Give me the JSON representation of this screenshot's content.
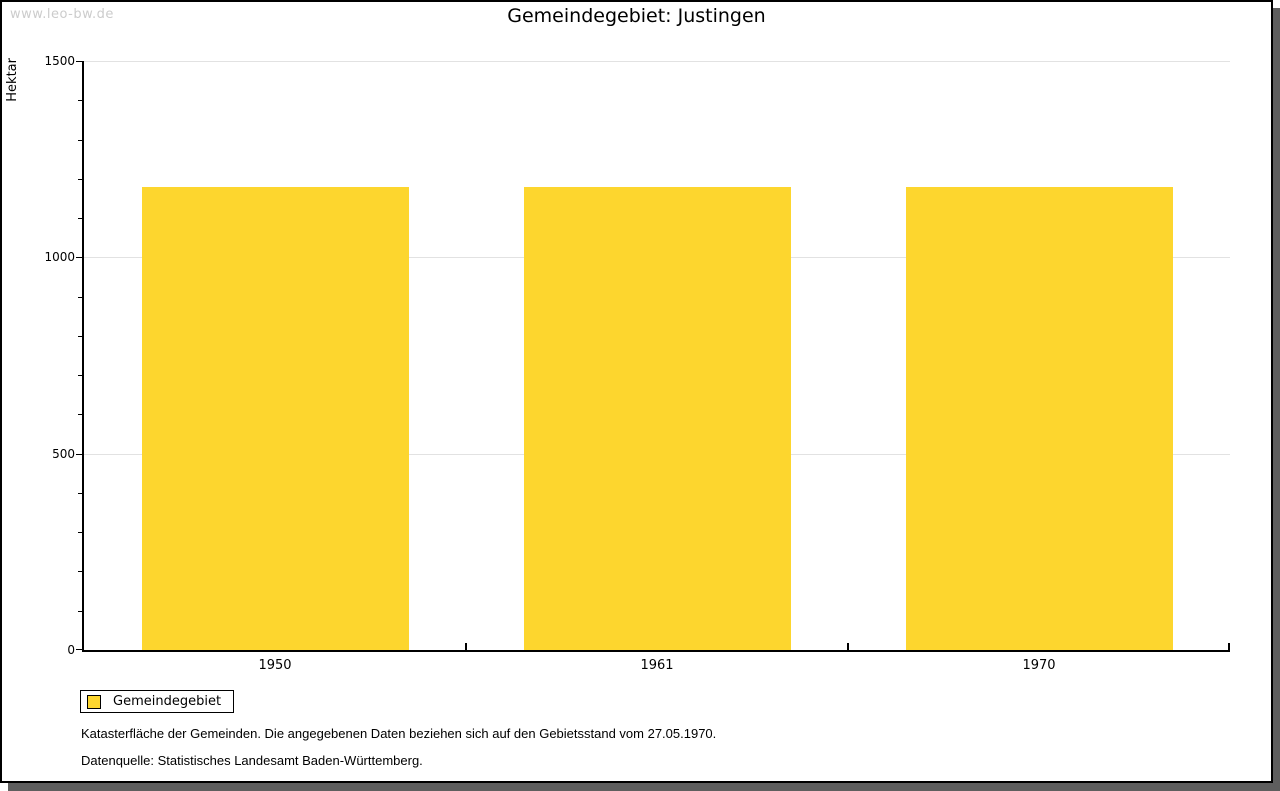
{
  "watermark": "www.leo-bw.de",
  "chart_data": {
    "type": "bar",
    "title": "Gemeindegebiet: Justingen",
    "ylabel": "Hektar",
    "xlabel": "",
    "categories": [
      "1950",
      "1961",
      "1970"
    ],
    "series": [
      {
        "name": "Gemeindegebiet",
        "color": "#FDD62E",
        "values": [
          1179,
          1179,
          1179
        ]
      }
    ],
    "ylim": [
      0,
      1500
    ],
    "yticks": [
      0,
      500,
      1000,
      1500
    ],
    "ytick_minor_step": 100,
    "grid": true,
    "gridline_color": "#e2e2e2",
    "legend_position": "bottom-left",
    "bar_width_ratio": 0.7
  },
  "legend": {
    "items": [
      {
        "label": "Gemeindegebiet",
        "color": "#FDD62E"
      }
    ]
  },
  "footnotes": [
    "Katasterfläche der Gemeinden. Die angegebenen Daten beziehen sich auf den Gebietsstand vom 27.05.1970.",
    "Datenquelle: Statistisches Landesamt Baden-Württemberg."
  ],
  "colors": {
    "bar_yellow": "#FDD62E",
    "axis_black": "#000000",
    "gridline_gray": "#e2e2e2",
    "watermark_gray": "#cccccc",
    "shadow_gray": "#5e5e5e",
    "background": "#ffffff"
  }
}
